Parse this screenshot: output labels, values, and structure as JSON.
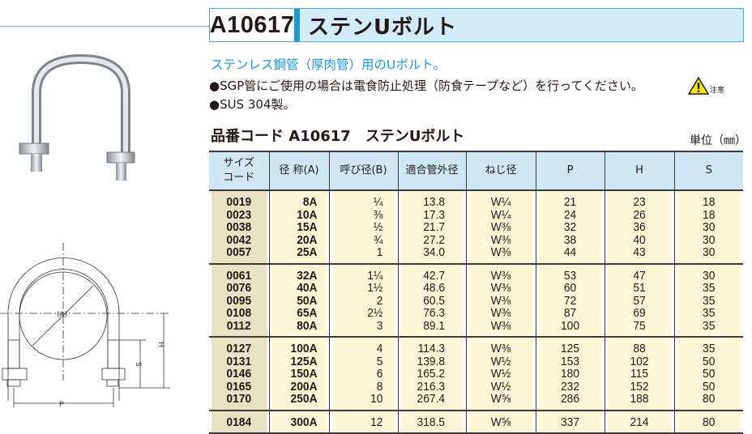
{
  "title": {
    "code": "A10617",
    "name": "ステンUボルト"
  },
  "subtitle": "ステンレス鋼管（厚肉管）用のUボルト。",
  "bullets": [
    "●SGP管にご使用の場合は電食防止処理（防食テープなど）を行ってください。",
    "●SUS 304製。"
  ],
  "warning": {
    "label": "注意",
    "icon": "warning-triangle-icon",
    "color": "#f5e600"
  },
  "section_title": "品番コード A10617　ステンUボルト",
  "unit": "単位（㎜）",
  "diagram": {
    "labels": {
      "a": "(A)",
      "h": "H",
      "s": "S",
      "p": "P"
    }
  },
  "colors": {
    "accent": "#1a9ad6",
    "header_bg": "#cfe7f5",
    "body_bg": "#fdf7d8",
    "code_col_bg": "#e9e2c2"
  },
  "table": {
    "headers": [
      "サイズ\nコード",
      "径 称(A)",
      "呼び径(B)",
      "適合管外径",
      "ねじ径",
      "P",
      "H",
      "S"
    ],
    "groups": [
      [
        [
          "0019",
          "8A",
          "¼",
          "13.8",
          "W¼",
          "21",
          "23",
          "18"
        ],
        [
          "0023",
          "10A",
          "⅜",
          "17.3",
          "W¼",
          "24",
          "26",
          "18"
        ],
        [
          "0038",
          "15A",
          "½",
          "21.7",
          "W⅜",
          "32",
          "36",
          "30"
        ],
        [
          "0042",
          "20A",
          "¾",
          "27.2",
          "W⅜",
          "38",
          "40",
          "30"
        ],
        [
          "0057",
          "25A",
          "1",
          "34.0",
          "W⅜",
          "44",
          "43",
          "30"
        ]
      ],
      [
        [
          "0061",
          "32A",
          "1¼",
          "42.7",
          "W⅜",
          "53",
          "47",
          "30"
        ],
        [
          "0076",
          "40A",
          "1½",
          "48.6",
          "W⅜",
          "60",
          "51",
          "35"
        ],
        [
          "0095",
          "50A",
          "2",
          "60.5",
          "W⅜",
          "72",
          "57",
          "35"
        ],
        [
          "0108",
          "65A",
          "2½",
          "76.3",
          "W⅜",
          "87",
          "69",
          "35"
        ],
        [
          "0112",
          "80A",
          "3",
          "89.1",
          "W⅜",
          "100",
          "75",
          "35"
        ]
      ],
      [
        [
          "0127",
          "100A",
          "4",
          "114.3",
          "W⅜",
          "125",
          "88",
          "35"
        ],
        [
          "0131",
          "125A",
          "5",
          "139.8",
          "W½",
          "153",
          "102",
          "50"
        ],
        [
          "0146",
          "150A",
          "6",
          "165.2",
          "W½",
          "180",
          "115",
          "50"
        ],
        [
          "0165",
          "200A",
          "8",
          "216.3",
          "W½",
          "232",
          "152",
          "50"
        ],
        [
          "0170",
          "250A",
          "10",
          "267.4",
          "W⅝",
          "286",
          "188",
          "80"
        ]
      ],
      [
        [
          "0184",
          "300A",
          "12",
          "318.5",
          "W⅝",
          "337",
          "214",
          "80"
        ]
      ]
    ]
  }
}
